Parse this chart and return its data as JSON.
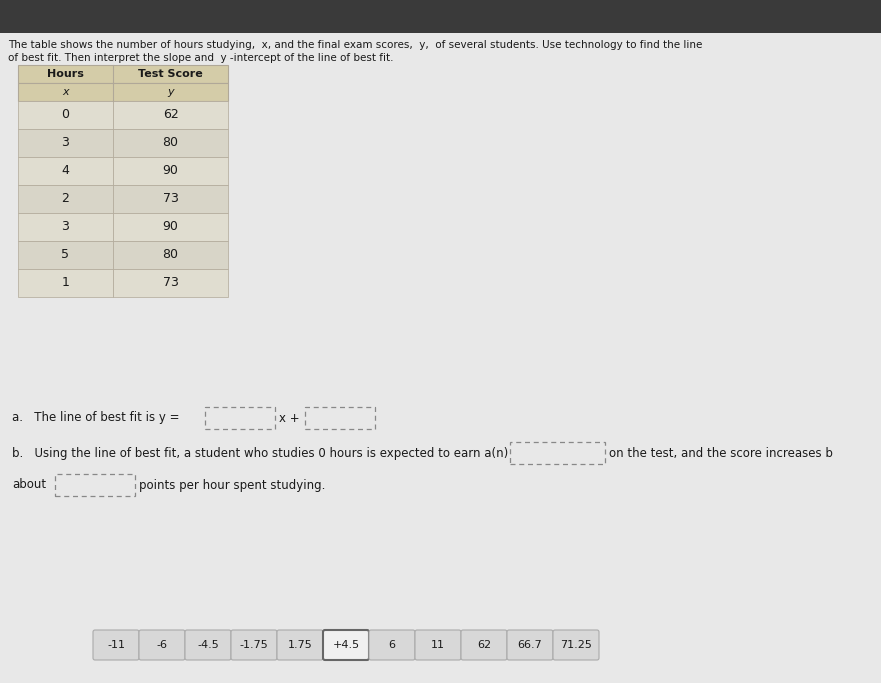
{
  "title_line1": "The table shows the number of hours studying,  x, and the final exam scores,  y,  of several students. Use technology to find the line",
  "title_line2": "of best fit. Then interpret the slope and  y -intercept of the line of best fit.",
  "table_headers_row1": [
    "Hours",
    "Test Score"
  ],
  "table_headers_row2": [
    "x",
    "y"
  ],
  "table_data": [
    [
      "0",
      "62"
    ],
    [
      "3",
      "80"
    ],
    [
      "4",
      "90"
    ],
    [
      "2",
      "73"
    ],
    [
      "3",
      "90"
    ],
    [
      "5",
      "80"
    ],
    [
      "1",
      "73"
    ]
  ],
  "part_a_prefix": "a.   The line of best fit is y =",
  "part_a_mid": "x +",
  "part_b_line1_prefix": "b.   Using the line of best fit, a student who studies 0 hours is expected to earn a(n)",
  "part_b_line1_suffix": "on the test, and the score increases b",
  "part_b_line2_prefix": "about",
  "part_b_line2_suffix": "points per hour spent studying.",
  "answer_chips": [
    "-11",
    "-6",
    "-4.5",
    "-1.75",
    "1.75",
    "+4.5",
    "6",
    "11",
    "62",
    "66.7",
    "71.25"
  ],
  "highlighted_chip": "+4.5",
  "outer_bg": "#3a3a3a",
  "page_bg": "#e8e8e8",
  "table_header_bg": "#d4cca8",
  "table_row_bg_light": "#e0ddd0",
  "table_row_bg_dark": "#d8d5c8",
  "table_border": "#b0a898",
  "text_color": "#1a1a1a",
  "chip_bg": "#d8d8d8",
  "chip_highlighted_bg": "#f0f0f0",
  "chip_border_normal": "#aaaaaa",
  "chip_border_highlighted": "#666666",
  "dashed_box_color": "#888888"
}
